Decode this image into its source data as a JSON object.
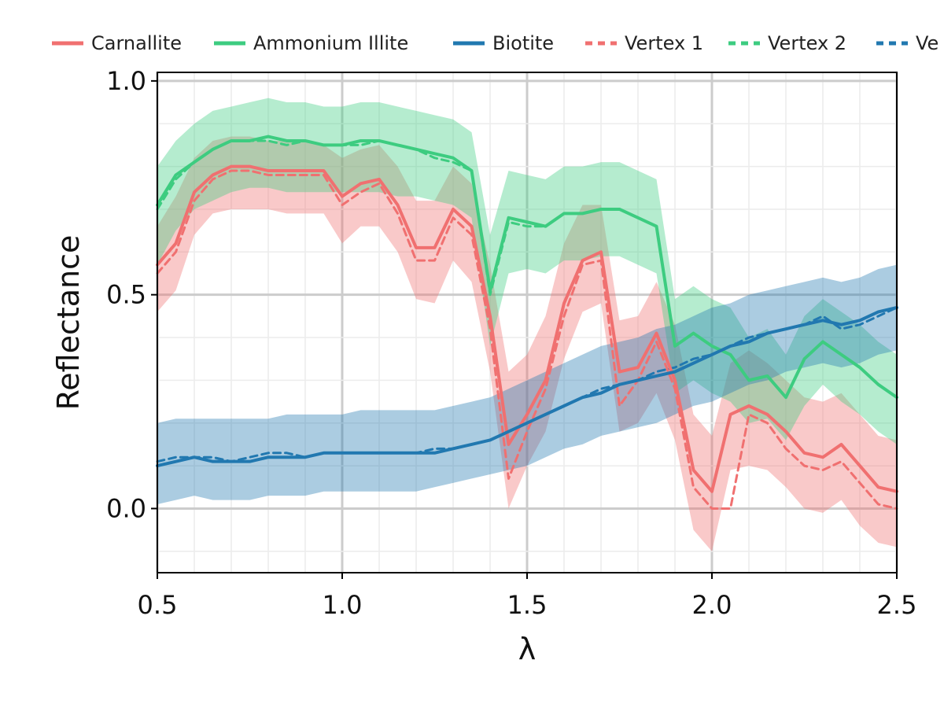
{
  "chart_data": {
    "type": "line",
    "title": "",
    "xlabel": "λ",
    "ylabel": "Reflectance",
    "xlim": [
      0.5,
      2.5
    ],
    "ylim": [
      -0.15,
      1.02
    ],
    "x_ticks": [
      "0.5",
      "1.0",
      "1.5",
      "2.0",
      "2.5"
    ],
    "y_ticks": [
      "0.0",
      "0.5",
      "1.0"
    ],
    "grid": true,
    "legend_position": "top",
    "legend": [
      "Carnallite",
      "Ammonium Illite",
      "Biotite",
      "Vertex 1",
      "Vertex 2",
      "Ve"
    ],
    "colors": {
      "carnallite": "#f07070",
      "ammonium_illite": "#3dcc80",
      "biotite": "#2178b0"
    },
    "x": [
      0.5,
      0.55,
      0.6,
      0.65,
      0.7,
      0.75,
      0.8,
      0.85,
      0.9,
      0.95,
      1.0,
      1.05,
      1.1,
      1.15,
      1.2,
      1.25,
      1.3,
      1.35,
      1.4,
      1.45,
      1.5,
      1.55,
      1.6,
      1.65,
      1.7,
      1.75,
      1.8,
      1.85,
      1.9,
      1.95,
      2.0,
      2.05,
      2.1,
      2.15,
      2.2,
      2.25,
      2.3,
      2.35,
      2.4,
      2.45,
      2.5
    ],
    "series": [
      {
        "name": "Carnallite",
        "style": "solid",
        "values": [
          0.57,
          0.62,
          0.74,
          0.78,
          0.8,
          0.8,
          0.79,
          0.79,
          0.79,
          0.79,
          0.73,
          0.76,
          0.77,
          0.71,
          0.61,
          0.61,
          0.7,
          0.66,
          0.45,
          0.15,
          0.22,
          0.3,
          0.48,
          0.58,
          0.6,
          0.32,
          0.33,
          0.41,
          0.3,
          0.09,
          0.04,
          0.22,
          0.24,
          0.22,
          0.18,
          0.13,
          0.12,
          0.15,
          0.1,
          0.05,
          0.04
        ],
        "lower": [
          0.46,
          0.51,
          0.64,
          0.69,
          0.7,
          0.7,
          0.7,
          0.69,
          0.69,
          0.69,
          0.62,
          0.66,
          0.66,
          0.6,
          0.49,
          0.48,
          0.58,
          0.53,
          0.32,
          0.0,
          0.1,
          0.18,
          0.35,
          0.46,
          0.48,
          0.18,
          0.2,
          0.27,
          0.16,
          -0.05,
          -0.1,
          0.09,
          0.1,
          0.09,
          0.05,
          0.0,
          -0.01,
          0.02,
          -0.04,
          -0.08,
          -0.09
        ],
        "upper": [
          0.66,
          0.73,
          0.82,
          0.86,
          0.87,
          0.87,
          0.86,
          0.86,
          0.86,
          0.85,
          0.82,
          0.84,
          0.85,
          0.8,
          0.72,
          0.72,
          0.8,
          0.76,
          0.57,
          0.32,
          0.36,
          0.45,
          0.62,
          0.71,
          0.71,
          0.44,
          0.45,
          0.53,
          0.43,
          0.22,
          0.17,
          0.34,
          0.37,
          0.34,
          0.3,
          0.26,
          0.25,
          0.27,
          0.22,
          0.17,
          0.16
        ]
      },
      {
        "name": "Ammonium Illite",
        "style": "solid",
        "values": [
          0.71,
          0.78,
          0.81,
          0.84,
          0.86,
          0.86,
          0.87,
          0.86,
          0.86,
          0.85,
          0.85,
          0.86,
          0.86,
          0.85,
          0.84,
          0.83,
          0.82,
          0.79,
          0.51,
          0.68,
          0.67,
          0.66,
          0.69,
          0.69,
          0.7,
          0.7,
          0.68,
          0.66,
          0.38,
          0.41,
          0.38,
          0.36,
          0.3,
          0.31,
          0.26,
          0.35,
          0.39,
          0.36,
          0.33,
          0.29,
          0.26
        ],
        "lower": [
          0.57,
          0.65,
          0.7,
          0.72,
          0.74,
          0.75,
          0.75,
          0.74,
          0.74,
          0.74,
          0.74,
          0.74,
          0.74,
          0.73,
          0.73,
          0.72,
          0.71,
          0.68,
          0.38,
          0.55,
          0.56,
          0.55,
          0.58,
          0.58,
          0.59,
          0.59,
          0.57,
          0.55,
          0.27,
          0.3,
          0.27,
          0.25,
          0.2,
          0.21,
          0.16,
          0.24,
          0.29,
          0.25,
          0.22,
          0.18,
          0.15
        ],
        "upper": [
          0.8,
          0.86,
          0.9,
          0.93,
          0.94,
          0.95,
          0.96,
          0.95,
          0.95,
          0.94,
          0.94,
          0.95,
          0.95,
          0.94,
          0.93,
          0.92,
          0.91,
          0.88,
          0.64,
          0.79,
          0.78,
          0.77,
          0.8,
          0.8,
          0.81,
          0.81,
          0.79,
          0.77,
          0.49,
          0.52,
          0.49,
          0.47,
          0.4,
          0.42,
          0.36,
          0.45,
          0.49,
          0.46,
          0.43,
          0.39,
          0.36
        ]
      },
      {
        "name": "Biotite",
        "style": "solid",
        "values": [
          0.1,
          0.11,
          0.12,
          0.11,
          0.11,
          0.11,
          0.12,
          0.12,
          0.12,
          0.13,
          0.13,
          0.13,
          0.13,
          0.13,
          0.13,
          0.13,
          0.14,
          0.15,
          0.16,
          0.18,
          0.2,
          0.22,
          0.24,
          0.26,
          0.27,
          0.29,
          0.3,
          0.31,
          0.32,
          0.34,
          0.36,
          0.38,
          0.39,
          0.41,
          0.42,
          0.43,
          0.44,
          0.43,
          0.44,
          0.46,
          0.47
        ],
        "lower": [
          0.01,
          0.02,
          0.03,
          0.02,
          0.02,
          0.02,
          0.03,
          0.03,
          0.03,
          0.04,
          0.04,
          0.04,
          0.04,
          0.04,
          0.04,
          0.05,
          0.06,
          0.07,
          0.08,
          0.09,
          0.1,
          0.12,
          0.14,
          0.15,
          0.17,
          0.18,
          0.19,
          0.2,
          0.22,
          0.24,
          0.25,
          0.27,
          0.29,
          0.3,
          0.32,
          0.33,
          0.34,
          0.33,
          0.34,
          0.36,
          0.37
        ],
        "upper": [
          0.2,
          0.21,
          0.21,
          0.21,
          0.21,
          0.21,
          0.21,
          0.22,
          0.22,
          0.22,
          0.22,
          0.23,
          0.23,
          0.23,
          0.23,
          0.23,
          0.24,
          0.25,
          0.26,
          0.28,
          0.3,
          0.32,
          0.34,
          0.36,
          0.38,
          0.39,
          0.4,
          0.42,
          0.43,
          0.45,
          0.47,
          0.48,
          0.5,
          0.51,
          0.52,
          0.53,
          0.54,
          0.53,
          0.54,
          0.56,
          0.57
        ]
      },
      {
        "name": "Vertex 1",
        "style": "dashed",
        "values": [
          0.55,
          0.6,
          0.72,
          0.77,
          0.79,
          0.79,
          0.78,
          0.78,
          0.78,
          0.78,
          0.71,
          0.74,
          0.76,
          0.69,
          0.58,
          0.58,
          0.68,
          0.64,
          0.42,
          0.07,
          0.18,
          0.28,
          0.45,
          0.57,
          0.58,
          0.24,
          0.3,
          0.39,
          0.28,
          0.05,
          0.0,
          0.0,
          0.22,
          0.2,
          0.14,
          0.1,
          0.09,
          0.11,
          0.06,
          0.01,
          0.0
        ]
      },
      {
        "name": "Vertex 2",
        "style": "dashed",
        "values": [
          0.7,
          0.77,
          0.81,
          0.84,
          0.86,
          0.86,
          0.86,
          0.85,
          0.86,
          0.85,
          0.85,
          0.85,
          0.86,
          0.85,
          0.84,
          0.82,
          0.81,
          0.79,
          0.5,
          0.67,
          0.66,
          0.66,
          0.69,
          0.69,
          0.7,
          0.7,
          0.68,
          0.66,
          0.38,
          0.41,
          0.38,
          0.36,
          0.3,
          0.31,
          0.26,
          0.35,
          0.39,
          0.36,
          0.33,
          0.29,
          0.26
        ]
      },
      {
        "name": "Ve",
        "style": "dashed",
        "values": [
          0.11,
          0.12,
          0.12,
          0.12,
          0.11,
          0.12,
          0.13,
          0.13,
          0.12,
          0.13,
          0.13,
          0.13,
          0.13,
          0.13,
          0.13,
          0.14,
          0.14,
          0.15,
          0.16,
          0.18,
          0.2,
          0.22,
          0.24,
          0.26,
          0.28,
          0.29,
          0.3,
          0.32,
          0.33,
          0.35,
          0.36,
          0.38,
          0.4,
          0.41,
          0.42,
          0.43,
          0.45,
          0.42,
          0.43,
          0.45,
          0.47
        ]
      }
    ]
  }
}
